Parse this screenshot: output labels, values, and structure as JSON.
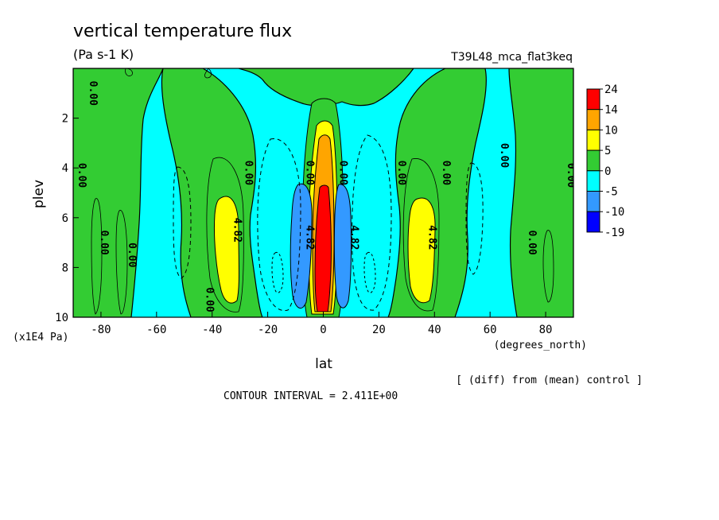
{
  "chart_data": {
    "type": "contour",
    "title": "vertical temperature flux",
    "units": "(Pa s-1 K)",
    "run_label": "T39L48_mca_flat3keq",
    "xlabel": "lat",
    "x_units": "(degrees_north)",
    "ylabel": "plev",
    "y_units": "(x1E4 Pa)",
    "x_ticks": [
      -80,
      -60,
      -40,
      -20,
      0,
      20,
      40,
      60,
      80
    ],
    "y_ticks": [
      2,
      4,
      6,
      8,
      10
    ],
    "xlim": [
      -90,
      90
    ],
    "ylim": [
      0,
      10
    ],
    "y_reversed": true,
    "contour_interval_text": "CONTOUR INTERVAL = 2.411E+00",
    "footnote": "[ (diff) from (mean) control ]",
    "colorbar": {
      "labels": [
        "24",
        "14",
        "10",
        "5",
        "0",
        "-5",
        "-10",
        "-19"
      ],
      "colors": [
        "#ff0000",
        "#ffa500",
        "#ffff00",
        "#33cc33",
        "#00ffff",
        "#3399ff",
        "#0000ff"
      ]
    },
    "contour_labels": [
      {
        "text": "0.00",
        "x": -84,
        "y": 1.0
      },
      {
        "text": "0.00",
        "x": -88,
        "y": 4.3
      },
      {
        "text": "0.00",
        "x": -80,
        "y": 7.0
      },
      {
        "text": "0.00",
        "x": -70,
        "y": 7.5
      },
      {
        "text": "0.00",
        "x": -42,
        "y": 9.3
      },
      {
        "text": "4.82",
        "x": -32,
        "y": 6.5
      },
      {
        "text": "0.00",
        "x": -28,
        "y": 4.2
      },
      {
        "text": "0.00",
        "x": -6,
        "y": 4.2
      },
      {
        "text": "4.82",
        "x": -6,
        "y": 6.8
      },
      {
        "text": "0.00",
        "x": 6,
        "y": 4.2
      },
      {
        "text": "4.82",
        "x": 10,
        "y": 6.8
      },
      {
        "text": "0.00",
        "x": 27,
        "y": 4.2
      },
      {
        "text": "0.00",
        "x": 43,
        "y": 4.2
      },
      {
        "text": "4.82",
        "x": 38,
        "y": 6.8
      },
      {
        "text": "0.00",
        "x": 64,
        "y": 3.5
      },
      {
        "text": "0.00",
        "x": 74,
        "y": 7.0
      },
      {
        "text": "0.00",
        "x": 88,
        "y": 4.3
      }
    ]
  }
}
